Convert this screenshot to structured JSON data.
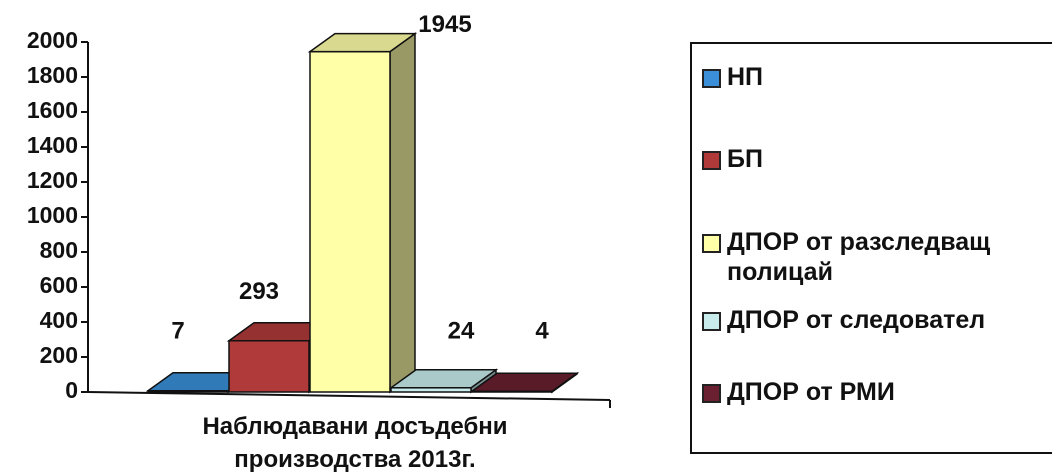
{
  "chart_data": {
    "type": "bar3d",
    "categories": [
      "Наблюдавани досъдебни производства 2013г."
    ],
    "series": [
      {
        "name": "НП",
        "color": "#3a8fd8",
        "values": [
          7
        ]
      },
      {
        "name": "БП",
        "color": "#b03a3a",
        "values": [
          293
        ]
      },
      {
        "name": "ДПОР от разследващ полицай",
        "color": "#ffffa8",
        "values": [
          1945
        ]
      },
      {
        "name": "ДПОР от следовател",
        "color": "#c8ecec",
        "values": [
          24
        ]
      },
      {
        "name": "ДПОР от РМИ",
        "color": "#6a2030",
        "values": [
          4
        ]
      }
    ],
    "ylim": [
      0,
      2000
    ],
    "yticks": [
      0,
      200,
      400,
      600,
      800,
      1000,
      1200,
      1400,
      1600,
      1800,
      2000
    ],
    "legend": "right"
  }
}
